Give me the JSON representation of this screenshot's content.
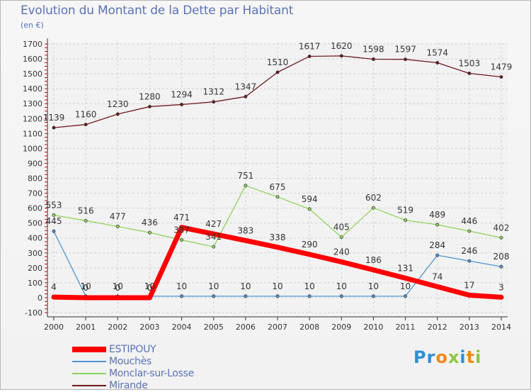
{
  "title": "Evolution du Montant de la Dette par Habitant",
  "unit": "(en €)",
  "logo": {
    "text": "Proxiti",
    "letter_colors": [
      "#2e8fd6",
      "#2e8fd6",
      "#f08a16",
      "#8cc63f",
      "#2e8fd6",
      "#f08a16",
      "#8cc63f"
    ]
  },
  "chart_data": {
    "type": "line",
    "x": [
      "2000",
      "2001",
      "2002",
      "2003",
      "2004",
      "2005",
      "2006",
      "2007",
      "2008",
      "2009",
      "2010",
      "2011",
      "2012",
      "2013",
      "2014"
    ],
    "ylim": [
      -100,
      1700
    ],
    "y_ticks": [
      -100,
      0,
      100,
      200,
      300,
      400,
      500,
      600,
      700,
      800,
      900,
      1000,
      1100,
      1200,
      1300,
      1400,
      1500,
      1600,
      1700
    ],
    "grid": true,
    "legend_position": "bottom-left",
    "series": [
      {
        "name": "Mirande",
        "color": "#6e1b1e",
        "stroke_width": 1.3,
        "marker": 3,
        "values": [
          1139,
          1160,
          1230,
          1280,
          1294,
          1312,
          1347,
          1510,
          1617,
          1620,
          1598,
          1597,
          1574,
          1503,
          1479
        ]
      },
      {
        "name": "Monclar-sur-Losse",
        "color": "#8fd35c",
        "stroke_width": 1.3,
        "marker": 3,
        "values": [
          553,
          516,
          477,
          436,
          387,
          341,
          751,
          675,
          594,
          405,
          602,
          519,
          489,
          446,
          402
        ]
      },
      {
        "name": "Mouchès",
        "color": "#4f95d3",
        "stroke_width": 1.3,
        "marker": 3,
        "values": [
          445,
          10,
          10,
          10,
          10,
          10,
          10,
          10,
          10,
          10,
          10,
          10,
          284,
          246,
          208
        ]
      },
      {
        "name": "ESTIPOUY",
        "color": "#ff0000",
        "stroke_width": 7,
        "marker": 7,
        "values": [
          4,
          0,
          0,
          0,
          471,
          427,
          383,
          338,
          290,
          240,
          186,
          131,
          74,
          17,
          3
        ]
      }
    ]
  }
}
